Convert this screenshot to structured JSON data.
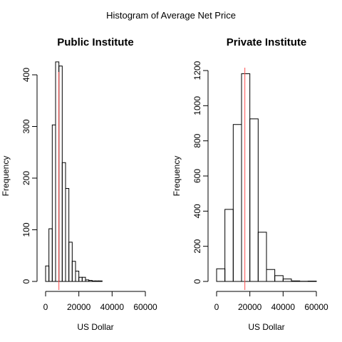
{
  "figure": {
    "title": "Histogram of Average Net Price"
  },
  "chart_data": [
    {
      "type": "bar",
      "title": "Public Institute",
      "xlabel": "US Dollar",
      "ylabel": "Frequency",
      "xlim": [
        0,
        60000
      ],
      "ylim": [
        0,
        430
      ],
      "xticks": [
        0,
        20000,
        40000,
        60000
      ],
      "yticks": [
        0,
        100,
        200,
        300,
        400
      ],
      "bin_width": 2000,
      "bins_start": [
        0,
        2000,
        4000,
        6000,
        8000,
        10000,
        12000,
        14000,
        16000,
        18000,
        20000,
        22000,
        24000,
        26000,
        28000,
        30000,
        32000
      ],
      "counts": [
        30,
        102,
        303,
        425,
        417,
        230,
        180,
        76,
        39,
        20,
        8,
        8,
        3,
        2,
        1,
        1,
        1
      ],
      "reference_line_x": 8000,
      "reference_line_color": "#ff4c4c",
      "grid": false,
      "legend": "none"
    },
    {
      "type": "bar",
      "title": "Private Institute",
      "xlabel": "US Dollar",
      "ylabel": "Frequency",
      "xlim": [
        0,
        60000
      ],
      "ylim": [
        0,
        1250
      ],
      "xticks": [
        0,
        20000,
        40000,
        60000
      ],
      "yticks": [
        0,
        200,
        400,
        600,
        800,
        1000,
        1200
      ],
      "bin_width": 5000,
      "bins_start": [
        0,
        5000,
        10000,
        15000,
        20000,
        25000,
        30000,
        35000,
        40000,
        45000,
        50000,
        55000
      ],
      "counts": [
        72,
        410,
        893,
        1182,
        925,
        280,
        68,
        33,
        14,
        3,
        1,
        2
      ],
      "reference_line_x": 17000,
      "reference_line_color": "#ff4c4c",
      "grid": false,
      "legend": "none"
    }
  ]
}
